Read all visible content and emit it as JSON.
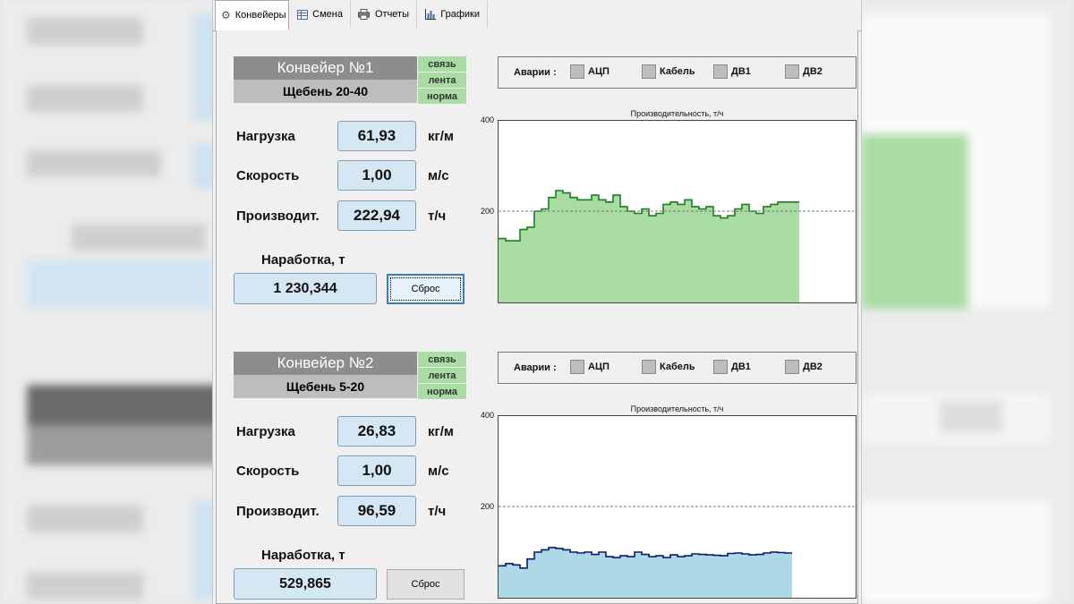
{
  "tabs": [
    {
      "label": "Конвейеры",
      "icon": "gear-icon",
      "active": true
    },
    {
      "label": "Смена",
      "icon": "table-icon",
      "active": false
    },
    {
      "label": "Отчеты",
      "icon": "printer-icon",
      "active": false
    },
    {
      "label": "Графики",
      "icon": "bar-chart-icon",
      "active": false
    }
  ],
  "conveyors": [
    {
      "title": "Конвейер №1",
      "material": "Щебень 20-40",
      "statuses": [
        "связь",
        "лента",
        "норма"
      ],
      "params": [
        {
          "label": "Нагрузка",
          "value": "61,93",
          "unit": "кг/м"
        },
        {
          "label": "Скорость",
          "value": "1,00",
          "unit": "м/с"
        },
        {
          "label": "Производит.",
          "value": "222,94",
          "unit": "т/ч"
        }
      ],
      "runtime_label": "Наработка, т",
      "runtime_value": "1 230,344",
      "reset_label": "Сброс",
      "alarms_label": "Аварии :",
      "alarms": [
        "АЦП",
        "Кабель",
        "ДВ1",
        "ДВ2"
      ],
      "chart_title": "Производительность, т/ч",
      "y_ticks": [
        "400",
        "200"
      ]
    },
    {
      "title": "Конвейер №2",
      "material": "Щебень 5-20",
      "statuses": [
        "связь",
        "лента",
        "норма"
      ],
      "params": [
        {
          "label": "Нагрузка",
          "value": "26,83",
          "unit": "кг/м"
        },
        {
          "label": "Скорость",
          "value": "1,00",
          "unit": "м/с"
        },
        {
          "label": "Производит.",
          "value": "96,59",
          "unit": "т/ч"
        }
      ],
      "runtime_label": "Наработка, т",
      "runtime_value": "529,865",
      "reset_label": "Сброс",
      "alarms_label": "Аварии :",
      "alarms": [
        "АЦП",
        "Кабель",
        "ДВ1",
        "ДВ2"
      ],
      "chart_title": "Производительность, т/ч",
      "y_ticks": [
        "400",
        "200"
      ]
    }
  ],
  "colors": {
    "status_ok": "#a9dda3",
    "chart1_fill": "#a8dca3",
    "chart1_line": "#1e7d22",
    "chart2_fill": "#add8e6",
    "chart2_line": "#0a1a6e"
  },
  "chart_data": [
    {
      "type": "area",
      "ylim": [
        0,
        400
      ],
      "reference_line": 200,
      "grid": false,
      "values": [
        140,
        135,
        135,
        160,
        165,
        200,
        205,
        230,
        245,
        240,
        230,
        225,
        225,
        235,
        225,
        220,
        235,
        210,
        200,
        195,
        205,
        190,
        195,
        215,
        220,
        215,
        225,
        210,
        205,
        210,
        190,
        185,
        190,
        205,
        215,
        200,
        195,
        210,
        215,
        220,
        220,
        220
      ]
    },
    {
      "type": "area",
      "ylim": [
        0,
        400
      ],
      "reference_line": 200,
      "grid": false,
      "values": [
        70,
        75,
        72,
        65,
        85,
        100,
        105,
        110,
        108,
        105,
        100,
        98,
        100,
        95,
        100,
        90,
        88,
        92,
        90,
        100,
        95,
        90,
        92,
        88,
        94,
        90,
        92,
        96,
        95,
        94,
        93,
        92,
        97,
        98,
        96,
        94,
        95,
        98,
        100,
        99,
        98
      ]
    }
  ]
}
